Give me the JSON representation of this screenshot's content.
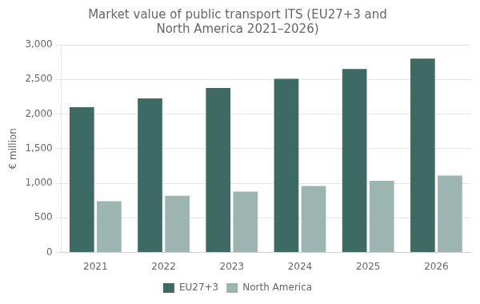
{
  "chart_data": {
    "type": "bar",
    "title": "Market value of public transport ITS (EU27+3 and\nNorth America 2021–2026)",
    "categories": [
      "2021",
      "2022",
      "2023",
      "2024",
      "2025",
      "2026"
    ],
    "series": [
      {
        "name": "EU27+3",
        "color": "#3d6b63",
        "values": [
          2100,
          2225,
          2375,
          2510,
          2650,
          2800
        ]
      },
      {
        "name": "North America",
        "color": "#9db5b0",
        "values": [
          740,
          820,
          880,
          960,
          1035,
          1110
        ]
      }
    ],
    "ylabel": "€ million",
    "ylim": [
      0,
      3000
    ],
    "yticks": [
      0,
      500,
      {
        "value": 1000,
        "label": "1,000"
      },
      {
        "value": 1500,
        "label": "1,500"
      },
      {
        "value": 2000,
        "label": "2,000"
      },
      {
        "value": 2500,
        "label": "2,500"
      },
      {
        "value": 3000,
        "label": "3,000"
      }
    ],
    "grid": true,
    "legend": "bottom"
  }
}
